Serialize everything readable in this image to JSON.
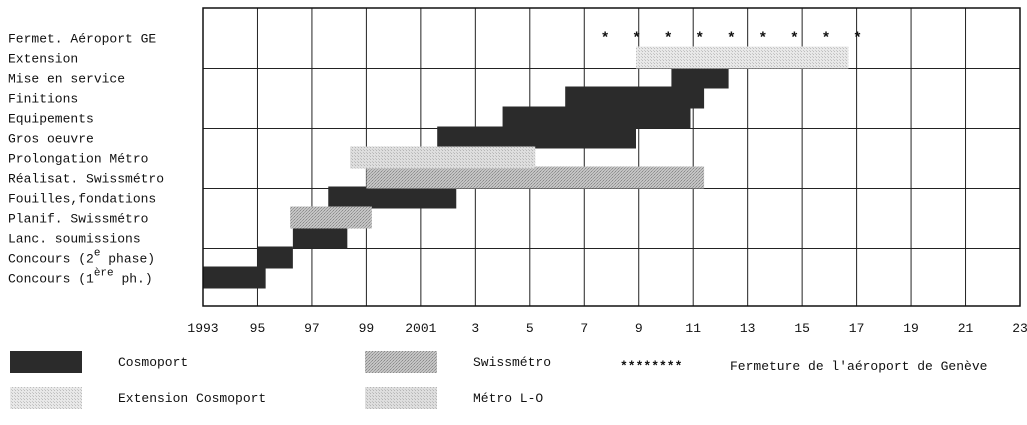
{
  "chart_data": {
    "type": "gantt",
    "title": "",
    "xlabel": "",
    "ylabel": "",
    "xlim": [
      1993,
      2023
    ],
    "grid": true,
    "x_ticks": [
      {
        "value": 1993,
        "label": "1993"
      },
      {
        "value": 1995,
        "label": "95"
      },
      {
        "value": 1997,
        "label": "97"
      },
      {
        "value": 1999,
        "label": "99"
      },
      {
        "value": 2001,
        "label": "2001"
      },
      {
        "value": 2003,
        "label": "3"
      },
      {
        "value": 2005,
        "label": "5"
      },
      {
        "value": 2007,
        "label": "7"
      },
      {
        "value": 2009,
        "label": "9"
      },
      {
        "value": 2011,
        "label": "11"
      },
      {
        "value": 2013,
        "label": "13"
      },
      {
        "value": 2015,
        "label": "15"
      },
      {
        "value": 2017,
        "label": "17"
      },
      {
        "value": 2019,
        "label": "19"
      },
      {
        "value": 2021,
        "label": "21"
      },
      {
        "value": 2023,
        "label": "23"
      }
    ],
    "rows": [
      {
        "label": "Fermet. Aéroport GE"
      },
      {
        "label": "Extension"
      },
      {
        "label": "Mise en service"
      },
      {
        "label": "Finitions"
      },
      {
        "label": "Equipements"
      },
      {
        "label": "Gros oeuvre"
      },
      {
        "label": "Prolongation Métro"
      },
      {
        "label": "Réalisat. Swissmétro"
      },
      {
        "label": "Fouilles,fondations"
      },
      {
        "label": "Planif. Swissmétro"
      },
      {
        "label": "Lanc. soumissions"
      },
      {
        "label": "Concours (2",
        "sup": "e",
        "suffix": " phase)"
      },
      {
        "label": "Concours (1",
        "sup": "ère",
        "suffix": " ph.)"
      }
    ],
    "series": [
      {
        "key": "cosmoport",
        "name": "Cosmoport",
        "color": "#2b2b2b",
        "style": "solid",
        "bars": [
          {
            "row": 12,
            "start": 1993,
            "end": 1995.3
          },
          {
            "row": 11,
            "start": 1995.0,
            "end": 1996.3
          },
          {
            "row": 10,
            "start": 1996.3,
            "end": 1998.3
          },
          {
            "row": 8,
            "start": 1997.6,
            "end": 2002.3
          },
          {
            "row": 5,
            "start": 2001.6,
            "end": 2008.9
          },
          {
            "row": 4,
            "start": 2004.0,
            "end": 2010.9
          },
          {
            "row": 3,
            "start": 2006.3,
            "end": 2011.4
          },
          {
            "row": 2,
            "start": 2010.2,
            "end": 2012.3
          }
        ]
      },
      {
        "key": "swissmetro",
        "name": "Swissmétro",
        "color": "#b0b0b0",
        "style": "dotted-dense",
        "bars": [
          {
            "row": 9,
            "start": 1996.2,
            "end": 1999.2
          },
          {
            "row": 7,
            "start": 1999.0,
            "end": 2011.4
          }
        ]
      },
      {
        "key": "airport",
        "name": "Fermeture de l'aéroport de Genève",
        "color": "#111111",
        "style": "stars",
        "symbol": "*********",
        "legend_symbol": "********",
        "bars": [
          {
            "row": 0,
            "start": 2007.6,
            "end": 2017.2
          }
        ]
      },
      {
        "key": "extension",
        "name": "Extension Cosmoport",
        "color": "#d9d9d9",
        "style": "dotted-light",
        "bars": [
          {
            "row": 1,
            "start": 2008.9,
            "end": 2016.7
          }
        ]
      },
      {
        "key": "metro",
        "name": "Métro L-O",
        "color": "#cfcfcf",
        "style": "dotted-light",
        "bars": [
          {
            "row": 6,
            "start": 1998.4,
            "end": 2005.2
          }
        ]
      }
    ],
    "legend": {
      "placement": "bottom",
      "order": [
        "cosmoport",
        "swissmetro",
        "airport",
        "extension",
        "metro"
      ]
    }
  }
}
